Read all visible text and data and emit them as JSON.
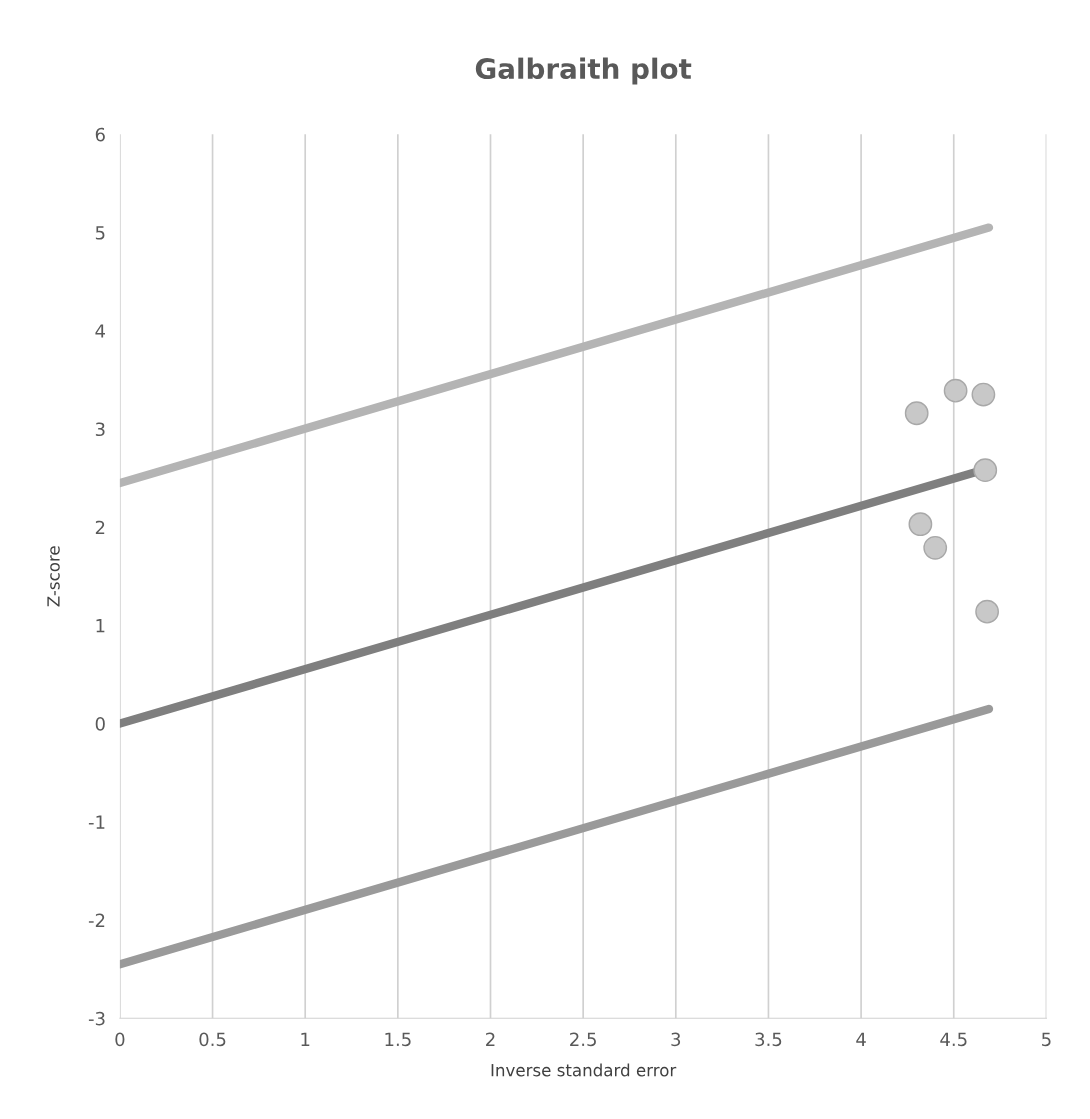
{
  "chart_data": {
    "type": "scatter",
    "title": "Galbraith plot",
    "xlabel": "Inverse standard error",
    "ylabel": "Z-score",
    "xlim": [
      0,
      5
    ],
    "xticks": [
      0,
      0.5,
      1,
      1.5,
      2,
      2.5,
      3,
      3.5,
      4,
      4.5,
      5
    ],
    "ylim": [
      -3,
      6
    ],
    "yticks": [
      -3,
      -2,
      -1,
      0,
      1,
      2,
      3,
      4,
      5,
      6
    ],
    "grid": "x",
    "legend": false,
    "series": [
      {
        "type": "line",
        "marker": "none",
        "color": "#b4b4b4",
        "x": [
          0,
          4.69
        ],
        "values": [
          2.45,
          5.05
        ]
      },
      {
        "type": "line",
        "marker": "none",
        "color": "#7f7f7f",
        "x": [
          0,
          4.69
        ],
        "values": [
          0,
          2.6
        ]
      },
      {
        "type": "line",
        "marker": "none",
        "color": "#9a9a9a",
        "x": [
          0,
          4.69
        ],
        "values": [
          -2.45,
          0.15
        ]
      },
      {
        "marker": "circle",
        "color": "#c8c8c8",
        "x": [
          4.3,
          4.51,
          4.66,
          4.67,
          4.32,
          4.4,
          4.68
        ],
        "values": [
          3.16,
          3.39,
          3.35,
          2.58,
          2.03,
          1.79,
          1.14
        ]
      }
    ]
  }
}
